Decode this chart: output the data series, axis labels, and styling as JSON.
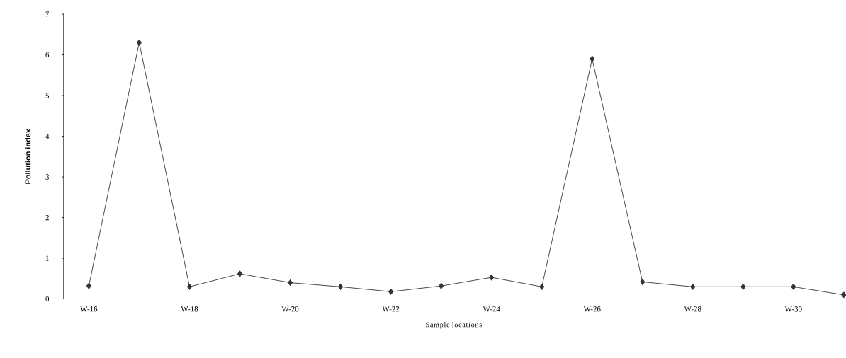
{
  "chart_data": {
    "type": "line",
    "xlabel": "Sample locations",
    "ylabel": "Pollution index",
    "categories": [
      "W-16",
      null,
      "W-18",
      null,
      "W-20",
      null,
      "W-22",
      null,
      "W-24",
      null,
      "W-26",
      null,
      "W-28",
      null,
      "W-30",
      null
    ],
    "series": [
      {
        "color": "#333333",
        "values": [
          0.32,
          6.3,
          0.3,
          0.62,
          0.4,
          0.3,
          0.18,
          0.32,
          0.53,
          0.3,
          5.9,
          0.42,
          0.3,
          0.3,
          0.3,
          0.1
        ]
      }
    ],
    "ylim": [
      0,
      7
    ],
    "yticks": [
      0,
      1,
      2,
      3,
      4,
      5,
      6,
      7
    ],
    "marker": "diamond",
    "line_style": "solid"
  }
}
